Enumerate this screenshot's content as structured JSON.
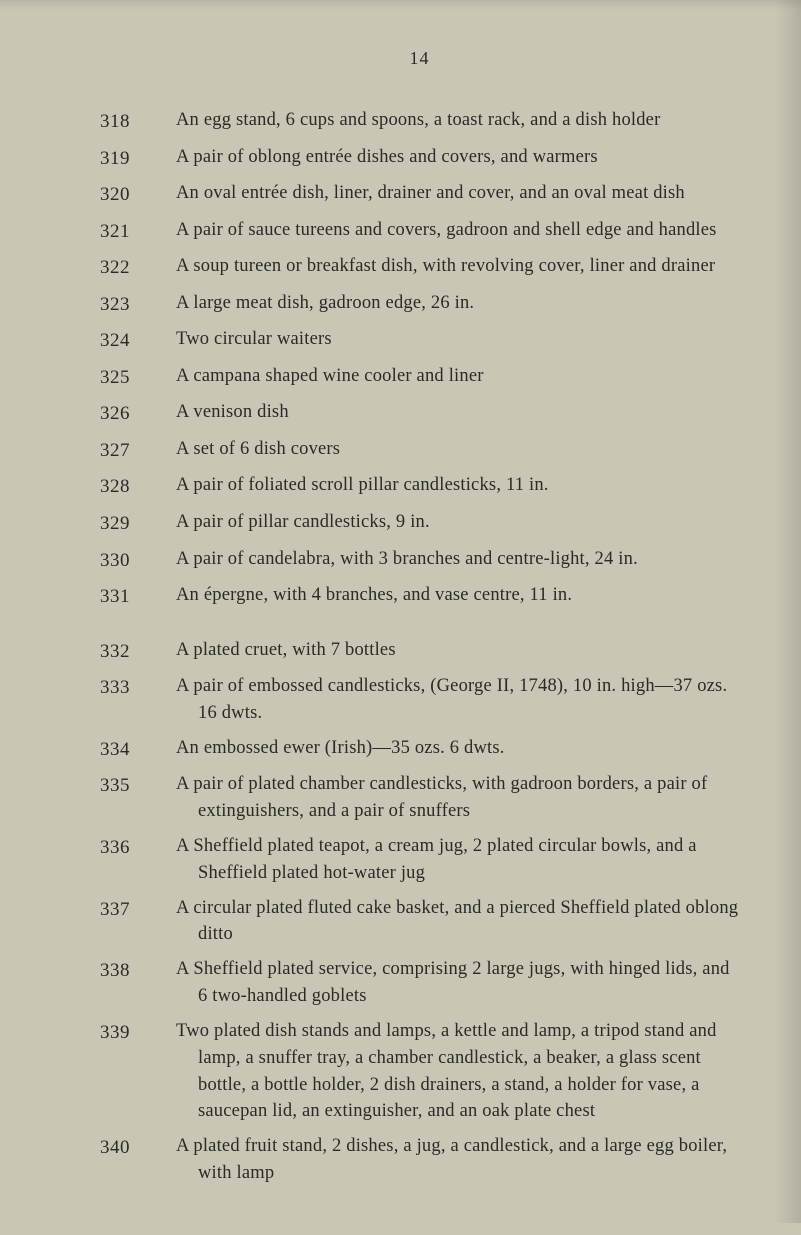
{
  "page_number": "14",
  "entries": [
    {
      "lot": "318",
      "desc": "An egg stand, 6 cups and spoons, a toast rack, and a dish holder"
    },
    {
      "lot": "319",
      "desc": "A pair of oblong entrée dishes and covers, and warmers"
    },
    {
      "lot": "320",
      "desc": "An oval entrée dish, liner, drainer and cover, and an oval meat dish"
    },
    {
      "lot": "321",
      "desc": "A pair of sauce tureens and covers, gadroon and shell edge and handles"
    },
    {
      "lot": "322",
      "desc": "A soup tureen or breakfast dish, with revolving cover, liner and drainer"
    },
    {
      "lot": "323",
      "desc": "A large meat dish, gadroon edge, 26 in."
    },
    {
      "lot": "324",
      "desc": "Two circular waiters"
    },
    {
      "lot": "325",
      "desc": "A campana shaped wine cooler and liner"
    },
    {
      "lot": "326",
      "desc": "A venison dish"
    },
    {
      "lot": "327",
      "desc": "A set of 6 dish covers"
    },
    {
      "lot": "328",
      "desc": "A pair of foliated scroll pillar candlesticks, 11 in."
    },
    {
      "lot": "329",
      "desc": "A pair of pillar candlesticks, 9 in."
    },
    {
      "lot": "330",
      "desc": "A pair of candelabra, with 3 branches and centre-light, 24 in."
    },
    {
      "lot": "331",
      "desc": "An épergne, with 4 branches, and vase centre, 11 in."
    },
    {
      "lot": "",
      "desc": "",
      "spacer": true
    },
    {
      "lot": "332",
      "desc": "A plated cruet, with 7 bottles"
    },
    {
      "lot": "333",
      "desc": "A pair of embossed candlesticks, (George II, 1748), 10 in. high—37 ozs. 16 dwts."
    },
    {
      "lot": "334",
      "desc": "An embossed ewer (Irish)—35 ozs. 6 dwts."
    },
    {
      "lot": "335",
      "desc": "A pair of plated chamber candlesticks, with gadroon borders, a pair of extinguishers, and a pair of snuffers"
    },
    {
      "lot": "336",
      "desc": "A Sheffield plated teapot, a cream jug, 2 plated circular bowls, and a Sheffield plated hot-water jug"
    },
    {
      "lot": "337",
      "desc": "A circular plated fluted cake basket, and a pierced Sheffield plated oblong ditto"
    },
    {
      "lot": "338",
      "desc": "A Sheffield plated service, comprising 2 large jugs, with hinged lids, and 6 two-handled goblets"
    },
    {
      "lot": "339",
      "desc": "Two plated dish stands and lamps, a kettle and lamp, a tripod stand and lamp, a snuffer tray, a chamber candlestick, a beaker, a glass scent bottle, a bottle holder, 2 dish drainers, a stand, a holder for vase, a saucepan lid, an extinguisher, and an oak plate chest"
    },
    {
      "lot": "340",
      "desc": "A plated fruit stand, 2 dishes, a jug, a candlestick, and a large egg boiler, with lamp"
    }
  ]
}
